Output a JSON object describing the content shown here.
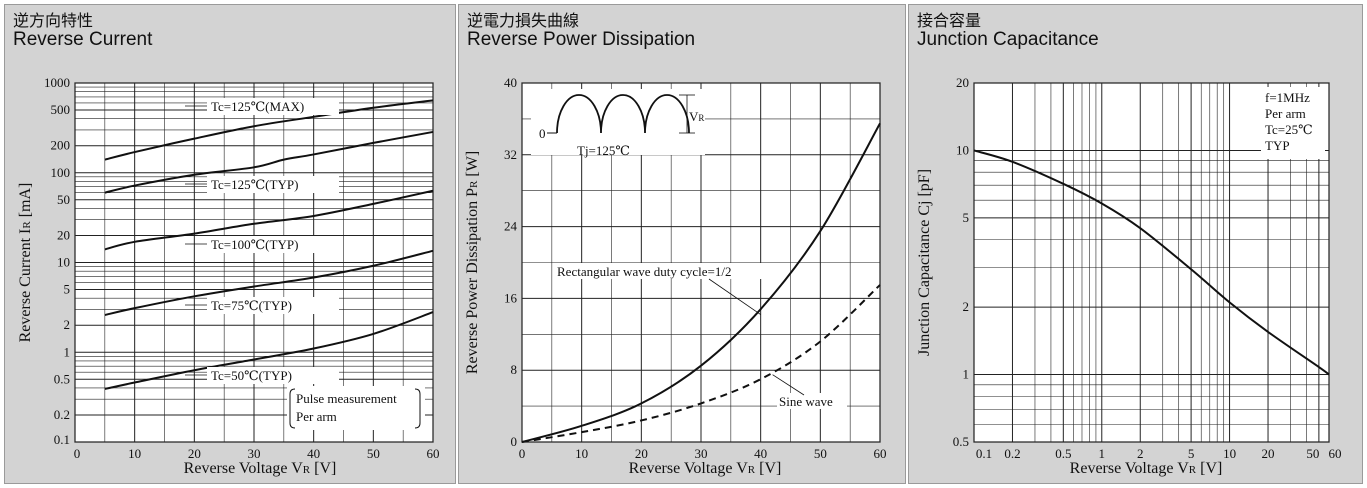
{
  "chart_data": [
    {
      "type": "line",
      "title_jp": "逆方向特性",
      "title": "Reverse Current",
      "xlabel": "Reverse Voltage   V",
      "xlabel_sub": "R",
      "xlabel_unit": " [V]",
      "ylabel": "Reverse Current   I",
      "ylabel_sub": "R",
      "ylabel_unit": " [mA]",
      "xlim": [
        0,
        60
      ],
      "ylim": [
        0.1,
        1000
      ],
      "yscale": "log",
      "xticks": [
        0,
        10,
        20,
        30,
        40,
        50,
        60
      ],
      "xtick_labels": [
        "0",
        "10",
        "20",
        "30",
        "40",
        "50",
        "60"
      ],
      "yticks": [
        0.1,
        0.2,
        0.5,
        1,
        2,
        5,
        10,
        20,
        50,
        100,
        200,
        500,
        1000
      ],
      "ytick_labels": [
        "0.1",
        "0.2",
        "0.5",
        "1",
        "2",
        "5",
        "10",
        "20",
        "50",
        "100",
        "200",
        "500",
        "1000"
      ],
      "grid": true,
      "series": [
        {
          "name": "Tc=125℃(MAX)",
          "x": [
            5,
            10,
            20,
            30,
            40,
            50,
            60
          ],
          "y": [
            140,
            170,
            240,
            330,
            420,
            530,
            640
          ]
        },
        {
          "name": "Tc=125℃(TYP)",
          "x": [
            5,
            10,
            20,
            30,
            35,
            40,
            50,
            60
          ],
          "y": [
            60,
            72,
            95,
            115,
            140,
            160,
            215,
            285
          ]
        },
        {
          "name": "Tc=100℃(TYP)",
          "x": [
            5,
            10,
            20,
            30,
            40,
            50,
            60
          ],
          "y": [
            14,
            17,
            21,
            27,
            33,
            45,
            63
          ]
        },
        {
          "name": "Tc=75℃(TYP)",
          "x": [
            5,
            10,
            20,
            30,
            40,
            50,
            60
          ],
          "y": [
            2.6,
            3.1,
            4.2,
            5.4,
            6.8,
            9.2,
            13.5
          ]
        },
        {
          "name": "Tc=50℃(TYP)",
          "x": [
            5,
            10,
            20,
            30,
            40,
            50,
            60
          ],
          "y": [
            0.39,
            0.46,
            0.63,
            0.83,
            1.1,
            1.6,
            2.8
          ]
        }
      ],
      "annotation_lines": [
        "Pulse measurement",
        "Per arm"
      ]
    },
    {
      "type": "line",
      "title_jp": "逆電力損失曲線",
      "title": "Reverse Power Dissipation",
      "xlabel": "Reverse Voltage   V",
      "xlabel_sub": "R",
      "xlabel_unit": " [V]",
      "ylabel": "Reverse Power Dissipation   P",
      "ylabel_sub": "R",
      "ylabel_unit": " [W]",
      "xlim": [
        0,
        60
      ],
      "ylim": [
        0,
        40
      ],
      "xticks": [
        0,
        10,
        20,
        30,
        40,
        50,
        60
      ],
      "xtick_labels": [
        "0",
        "10",
        "20",
        "30",
        "40",
        "50",
        "60"
      ],
      "yticks": [
        0,
        8,
        16,
        24,
        32,
        40
      ],
      "ytick_labels": [
        "0",
        "8",
        "16",
        "24",
        "32",
        "40"
      ],
      "grid": true,
      "series": [
        {
          "name": "Rectangular wave duty cycle=1/2",
          "style": "solid",
          "x": [
            0,
            10,
            20,
            30,
            40,
            50,
            60
          ],
          "y": [
            0,
            1.8,
            4.3,
            8.5,
            14.8,
            23.5,
            35.5
          ]
        },
        {
          "name": "Sine wave",
          "style": "dashed",
          "x": [
            0,
            10,
            20,
            30,
            40,
            50,
            60
          ],
          "y": [
            0,
            1.1,
            2.4,
            4.3,
            7.0,
            11.2,
            17.5
          ]
        }
      ],
      "inset": {
        "zero_label": "0",
        "v_label": "V",
        "v_sub": "R",
        "tj_label": "Tj=125℃"
      }
    },
    {
      "type": "line",
      "title_jp": "接合容量",
      "title": "Junction Capacitance",
      "xlabel": "Reverse Voltage   V",
      "xlabel_sub": "R",
      "xlabel_unit": " [V]",
      "ylabel": "Junction Capacitance   Cj [pF]",
      "xlim": [
        0.1,
        60
      ],
      "ylim": [
        0.5,
        20
      ],
      "xscale": "log",
      "yscale": "log",
      "xticks": [
        0.1,
        0.2,
        0.5,
        1,
        2,
        5,
        10,
        20,
        50,
        60
      ],
      "xtick_labels": [
        "0.1",
        "0.2",
        "0.5",
        "1",
        "2",
        "5",
        "10",
        "20",
        "50",
        "60"
      ],
      "yticks": [
        0.5,
        1,
        2,
        5,
        10,
        20
      ],
      "ytick_labels": [
        "0.5",
        "1",
        "2",
        "5",
        "10",
        "20"
      ],
      "grid": true,
      "series": [
        {
          "name": "Cj",
          "x": [
            0.1,
            0.2,
            0.5,
            1,
            2,
            5,
            10,
            20,
            50,
            60
          ],
          "y": [
            10,
            8.9,
            7.1,
            5.8,
            4.5,
            2.95,
            2.1,
            1.55,
            1.08,
            1.0
          ]
        }
      ],
      "annotation_lines": [
        "f=1MHz",
        "Per arm",
        "Tc=25℃",
        "TYP"
      ]
    }
  ]
}
